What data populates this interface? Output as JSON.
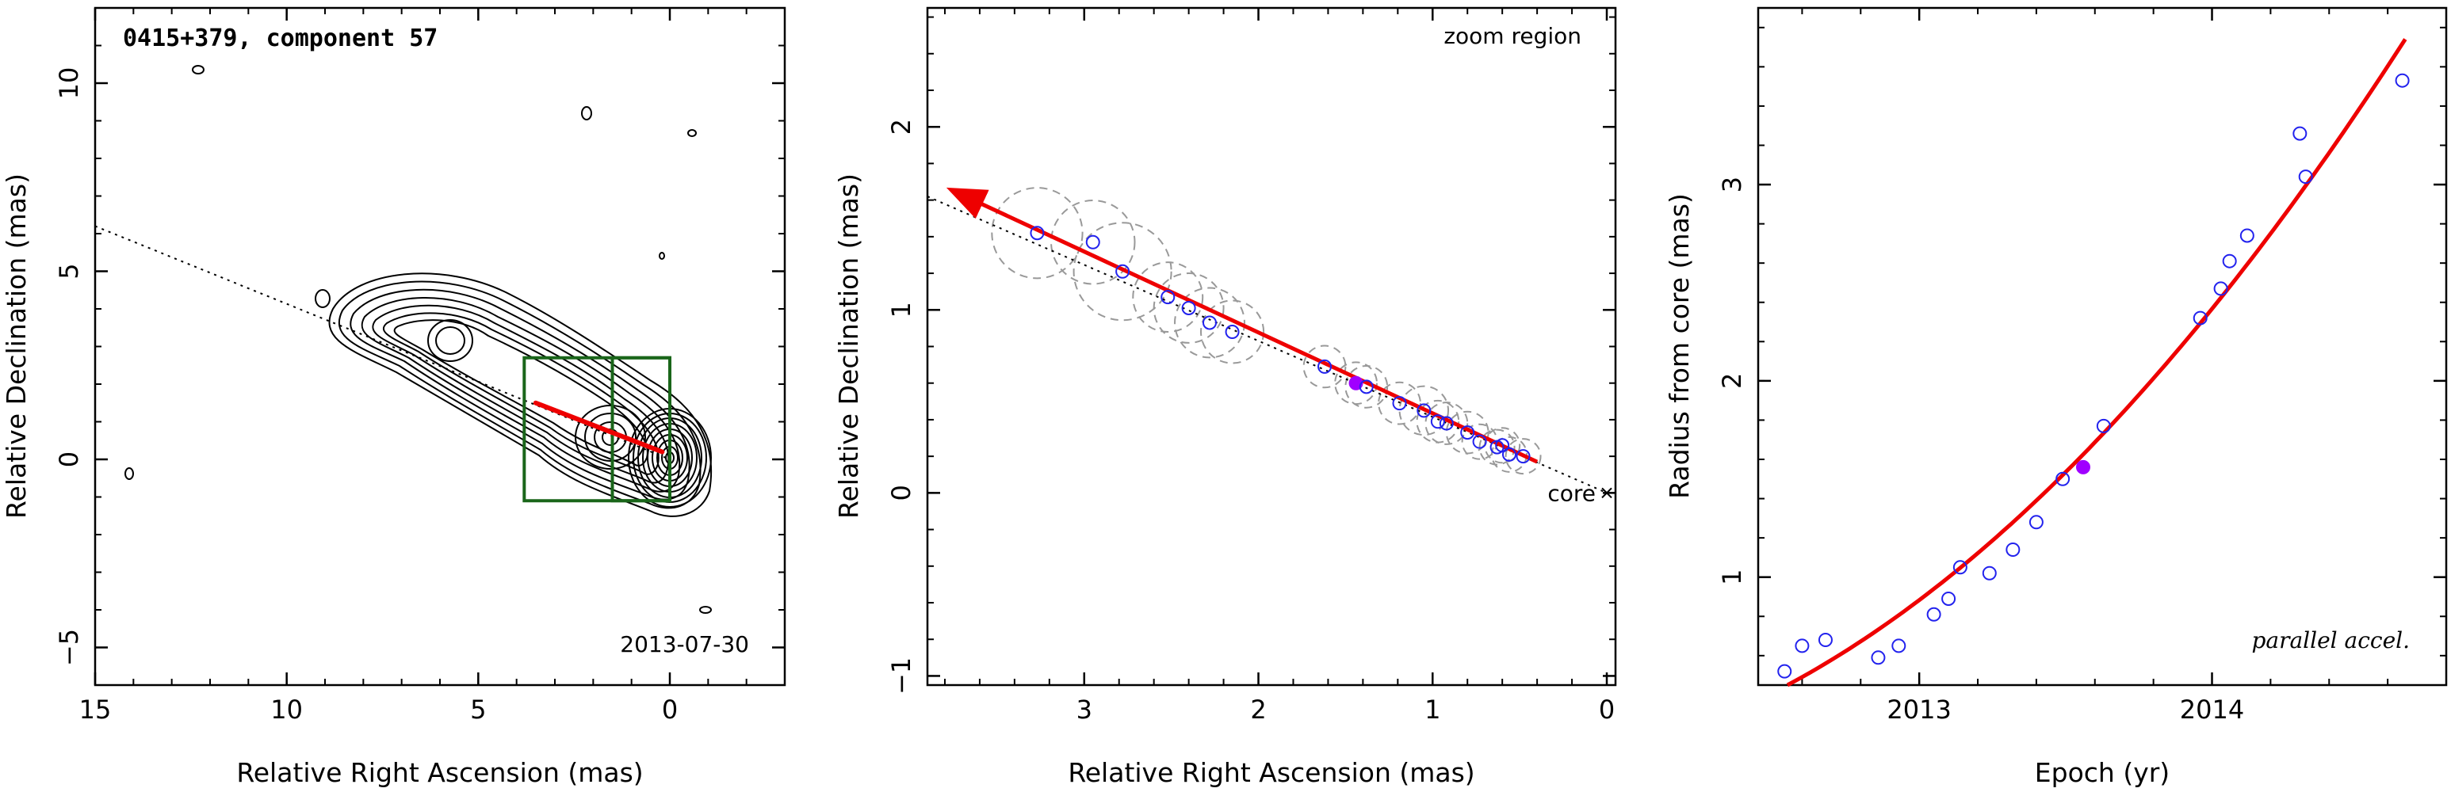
{
  "chart_data": [
    {
      "type": "contour",
      "title": "0415+379, component 57",
      "date_label": "2013-07-30",
      "xlabel": "Relative Right Ascension (mas)",
      "ylabel": "Relative Declination (mas)",
      "xlim": [
        15,
        -3
      ],
      "ylim": [
        -6,
        12
      ],
      "xticks": [
        15,
        10,
        5,
        0
      ],
      "yticks": [
        -5,
        0,
        5,
        10
      ],
      "jet_axis_line": [
        [
          15,
          6.2
        ],
        [
          0,
          0
        ]
      ],
      "velocity_vector": {
        "from": [
          0.2,
          0.2
        ],
        "to": [
          3.5,
          1.5
        ]
      },
      "zoom_boxes": [
        {
          "x": [
            3.8,
            0.0
          ],
          "y": [
            -1.1,
            2.7
          ]
        },
        {
          "x": [
            1.5,
            0.0
          ],
          "y": [
            -1.1,
            2.7
          ]
        }
      ]
    },
    {
      "type": "scatter",
      "corner_label": "zoom region",
      "core_label": "core",
      "xlabel": "Relative Right Ascension (mas)",
      "ylabel": "Relative Declination (mas)",
      "xlim": [
        3.9,
        -0.05
      ],
      "ylim": [
        -1.05,
        2.65
      ],
      "xticks": [
        3,
        2,
        1,
        0
      ],
      "yticks": [
        -1,
        0,
        1,
        2
      ],
      "core": [
        0,
        0
      ],
      "trend_line": [
        [
          3.9,
          1.62
        ],
        [
          0,
          0
        ]
      ],
      "velocity_vector": {
        "from": [
          0.4,
          0.17
        ],
        "to": [
          3.75,
          1.65
        ]
      },
      "points": [
        {
          "x": 3.27,
          "y": 1.42,
          "r": 0.26
        },
        {
          "x": 2.95,
          "y": 1.37,
          "r": 0.24
        },
        {
          "x": 2.78,
          "y": 1.21,
          "r": 0.28
        },
        {
          "x": 2.52,
          "y": 1.07,
          "r": 0.2
        },
        {
          "x": 2.4,
          "y": 1.01,
          "r": 0.2
        },
        {
          "x": 2.28,
          "y": 0.93,
          "r": 0.2
        },
        {
          "x": 2.15,
          "y": 0.88,
          "r": 0.18
        },
        {
          "x": 1.62,
          "y": 0.69,
          "r": 0.12
        },
        {
          "x": 1.44,
          "y": 0.6,
          "r": 0.12,
          "current": true
        },
        {
          "x": 1.38,
          "y": 0.58,
          "r": 0.12
        },
        {
          "x": 1.19,
          "y": 0.49,
          "r": 0.12
        },
        {
          "x": 1.05,
          "y": 0.45,
          "r": 0.14
        },
        {
          "x": 0.97,
          "y": 0.39,
          "r": 0.12
        },
        {
          "x": 0.92,
          "y": 0.38,
          "r": 0.12
        },
        {
          "x": 0.8,
          "y": 0.33,
          "r": 0.12
        },
        {
          "x": 0.73,
          "y": 0.28,
          "r": 0.1
        },
        {
          "x": 0.63,
          "y": 0.25,
          "r": 0.1
        },
        {
          "x": 0.6,
          "y": 0.26,
          "r": 0.1
        },
        {
          "x": 0.56,
          "y": 0.21,
          "r": 0.1
        },
        {
          "x": 0.48,
          "y": 0.2,
          "r": 0.1
        }
      ]
    },
    {
      "type": "scatter",
      "corner_label": "parallel accel.",
      "xlabel": "Epoch (yr)",
      "ylabel": "Radius from core (mas)",
      "xlim": [
        2012.45,
        2014.8
      ],
      "ylim": [
        0.45,
        3.9
      ],
      "xticks": [
        2013,
        2014
      ],
      "yticks": [
        1,
        2,
        3
      ],
      "fit_curve": {
        "x_range": [
          2012.55,
          2014.66
        ],
        "y_at_start": 0.45,
        "slope_at_start": 0.8,
        "curvature": 0.36
      },
      "points": [
        {
          "x": 2012.54,
          "y": 0.52
        },
        {
          "x": 2012.6,
          "y": 0.65
        },
        {
          "x": 2012.68,
          "y": 0.68
        },
        {
          "x": 2012.86,
          "y": 0.59
        },
        {
          "x": 2012.93,
          "y": 0.65
        },
        {
          "x": 2013.05,
          "y": 0.81
        },
        {
          "x": 2013.1,
          "y": 0.89
        },
        {
          "x": 2013.14,
          "y": 1.05
        },
        {
          "x": 2013.24,
          "y": 1.02
        },
        {
          "x": 2013.32,
          "y": 1.14
        },
        {
          "x": 2013.4,
          "y": 1.28
        },
        {
          "x": 2013.49,
          "y": 1.5
        },
        {
          "x": 2013.56,
          "y": 1.56,
          "current": true
        },
        {
          "x": 2013.63,
          "y": 1.77
        },
        {
          "x": 2013.96,
          "y": 2.32
        },
        {
          "x": 2014.03,
          "y": 2.47
        },
        {
          "x": 2014.06,
          "y": 2.61
        },
        {
          "x": 2014.12,
          "y": 2.74
        },
        {
          "x": 2014.3,
          "y": 3.26
        },
        {
          "x": 2014.32,
          "y": 3.04
        },
        {
          "x": 2014.65,
          "y": 3.53
        }
      ]
    }
  ],
  "colors": {
    "axis": "#000000",
    "contour": "#000000",
    "vector": "#ee0000",
    "zoom_box": "#1a661a",
    "point": "#2222ee",
    "current_point": "#a000ff",
    "beam_circle": "#999999",
    "fit": "#ee0000"
  }
}
